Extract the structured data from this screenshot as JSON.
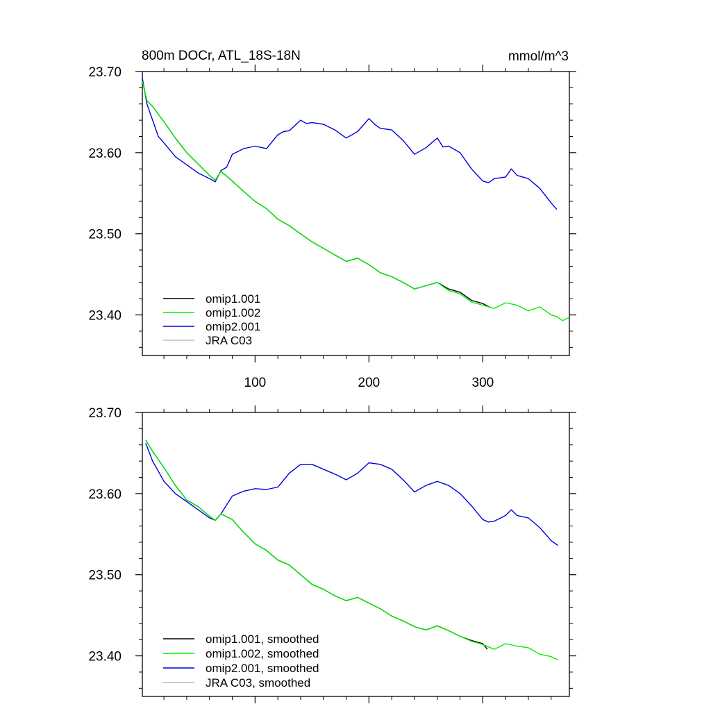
{
  "title": "800m DOCr, ATL_18S-18N",
  "units": "mmol/m^3",
  "colors": {
    "omip1_001": "#000000",
    "omip1_002": "#00ee00",
    "omip2_001": "#0000dd",
    "jra_c03": "#bbbbbb",
    "axis": "#000000",
    "background": "#ffffff"
  },
  "chart_data": [
    {
      "type": "line",
      "panel": "raw",
      "title": "800m DOCr, ATL_18S-18N",
      "units_label": "mmol/m^3",
      "xlim": [
        1,
        376
      ],
      "ylim": [
        23.35,
        23.7
      ],
      "x_ticks": [
        100,
        200,
        300
      ],
      "x_tick_labels": [
        "100",
        "200",
        "300"
      ],
      "y_ticks": [
        23.4,
        23.5,
        23.6,
        23.7
      ],
      "y_tick_labels": [
        "23.40",
        "23.50",
        "23.60",
        "23.70"
      ],
      "legend_position": "bottom-left",
      "series": [
        {
          "name": "omip1.001",
          "color": "#000000",
          "x": [
            1,
            5,
            10,
            20,
            30,
            40,
            50,
            60,
            65,
            70,
            80,
            90,
            100,
            110,
            120,
            130,
            140,
            150,
            160,
            170,
            180,
            190,
            200,
            210,
            220,
            230,
            240,
            250,
            260,
            270,
            280,
            290,
            300,
            307
          ],
          "y": [
            23.688,
            23.664,
            23.657,
            23.638,
            23.618,
            23.6,
            23.586,
            23.572,
            23.566,
            23.577,
            23.565,
            23.552,
            23.54,
            23.531,
            23.518,
            23.51,
            23.5,
            23.49,
            23.482,
            23.474,
            23.466,
            23.47,
            23.462,
            23.452,
            23.447,
            23.44,
            23.432,
            23.436,
            23.44,
            23.432,
            23.428,
            23.418,
            23.414,
            23.409
          ]
        },
        {
          "name": "omip1.002",
          "color": "#00ee00",
          "x": [
            1,
            5,
            10,
            20,
            30,
            40,
            50,
            60,
            65,
            70,
            80,
            90,
            100,
            110,
            120,
            130,
            140,
            150,
            160,
            170,
            180,
            190,
            200,
            210,
            220,
            230,
            240,
            250,
            260,
            270,
            280,
            290,
            300,
            310,
            320,
            330,
            340,
            350,
            360,
            365,
            370,
            376
          ],
          "y": [
            23.688,
            23.664,
            23.657,
            23.638,
            23.618,
            23.6,
            23.586,
            23.572,
            23.566,
            23.577,
            23.565,
            23.552,
            23.54,
            23.531,
            23.518,
            23.51,
            23.5,
            23.49,
            23.482,
            23.474,
            23.466,
            23.47,
            23.462,
            23.452,
            23.447,
            23.44,
            23.432,
            23.436,
            23.44,
            23.43,
            23.426,
            23.416,
            23.412,
            23.408,
            23.415,
            23.412,
            23.405,
            23.41,
            23.4,
            23.398,
            23.393,
            23.397
          ]
        },
        {
          "name": "omip2.001",
          "color": "#0000dd",
          "x": [
            1,
            3,
            5,
            10,
            15,
            20,
            30,
            40,
            50,
            60,
            65,
            70,
            75,
            80,
            90,
            100,
            110,
            120,
            125,
            130,
            140,
            145,
            150,
            160,
            170,
            180,
            190,
            200,
            205,
            210,
            220,
            230,
            240,
            250,
            255,
            260,
            265,
            270,
            280,
            290,
            300,
            305,
            310,
            320,
            325,
            330,
            340,
            350,
            360,
            365
          ],
          "y": [
            23.692,
            23.676,
            23.66,
            23.64,
            23.62,
            23.612,
            23.595,
            23.585,
            23.575,
            23.568,
            23.564,
            23.578,
            23.582,
            23.598,
            23.605,
            23.608,
            23.605,
            23.622,
            23.626,
            23.627,
            23.64,
            23.636,
            23.637,
            23.635,
            23.628,
            23.618,
            23.626,
            23.642,
            23.635,
            23.63,
            23.628,
            23.615,
            23.598,
            23.606,
            23.612,
            23.618,
            23.607,
            23.608,
            23.6,
            23.58,
            23.565,
            23.563,
            23.568,
            23.57,
            23.58,
            23.572,
            23.568,
            23.556,
            23.538,
            23.53
          ]
        },
        {
          "name": "JRA C03",
          "color": "#bbbbbb",
          "x": [],
          "y": []
        }
      ]
    },
    {
      "type": "line",
      "panel": "smoothed",
      "xlim": [
        1,
        376
      ],
      "ylim": [
        23.35,
        23.7
      ],
      "x_ticks": [
        100,
        200,
        300
      ],
      "y_ticks": [
        23.4,
        23.5,
        23.6,
        23.7
      ],
      "y_tick_labels": [
        "23.40",
        "23.50",
        "23.60",
        "23.70"
      ],
      "legend_position": "bottom-left",
      "series": [
        {
          "name": "omip1.001, smoothed",
          "color": "#000000",
          "x": [
            4,
            10,
            20,
            30,
            40,
            50,
            60,
            65,
            70,
            80,
            90,
            100,
            110,
            120,
            130,
            140,
            150,
            160,
            170,
            180,
            190,
            200,
            210,
            220,
            230,
            240,
            250,
            260,
            270,
            280,
            290,
            300,
            304
          ],
          "y": [
            23.666,
            23.652,
            23.632,
            23.61,
            23.592,
            23.584,
            23.572,
            23.567,
            23.575,
            23.568,
            23.552,
            23.538,
            23.53,
            23.518,
            23.512,
            23.5,
            23.488,
            23.482,
            23.474,
            23.468,
            23.472,
            23.465,
            23.458,
            23.449,
            23.443,
            23.436,
            23.432,
            23.437,
            23.431,
            23.424,
            23.419,
            23.415,
            23.408
          ]
        },
        {
          "name": "omip1.002, smoothed",
          "color": "#00ee00",
          "x": [
            4,
            10,
            20,
            30,
            40,
            50,
            60,
            65,
            70,
            80,
            90,
            100,
            110,
            120,
            130,
            140,
            150,
            160,
            170,
            180,
            190,
            200,
            210,
            220,
            230,
            240,
            250,
            260,
            270,
            280,
            290,
            300,
            310,
            320,
            330,
            340,
            350,
            360,
            366
          ],
          "y": [
            23.666,
            23.652,
            23.632,
            23.61,
            23.592,
            23.584,
            23.572,
            23.567,
            23.575,
            23.568,
            23.552,
            23.538,
            23.53,
            23.518,
            23.512,
            23.5,
            23.488,
            23.482,
            23.474,
            23.468,
            23.472,
            23.465,
            23.458,
            23.449,
            23.443,
            23.436,
            23.432,
            23.437,
            23.431,
            23.424,
            23.418,
            23.414,
            23.408,
            23.415,
            23.412,
            23.41,
            23.402,
            23.399,
            23.395
          ]
        },
        {
          "name": "omip2.001, smoothed",
          "color": "#0000dd",
          "x": [
            4,
            10,
            20,
            30,
            40,
            50,
            60,
            65,
            70,
            80,
            90,
            100,
            110,
            120,
            130,
            140,
            150,
            160,
            170,
            180,
            190,
            200,
            210,
            220,
            230,
            240,
            250,
            260,
            270,
            280,
            290,
            300,
            305,
            310,
            320,
            325,
            330,
            340,
            350,
            360,
            366
          ],
          "y": [
            23.662,
            23.64,
            23.615,
            23.6,
            23.59,
            23.58,
            23.57,
            23.567,
            23.575,
            23.597,
            23.603,
            23.606,
            23.605,
            23.608,
            23.625,
            23.636,
            23.636,
            23.63,
            23.624,
            23.617,
            23.625,
            23.638,
            23.636,
            23.63,
            23.617,
            23.602,
            23.61,
            23.615,
            23.61,
            23.6,
            23.585,
            23.568,
            23.565,
            23.566,
            23.573,
            23.58,
            23.573,
            23.57,
            23.558,
            23.542,
            23.536
          ]
        },
        {
          "name": "JRA C03, smoothed",
          "color": "#bbbbbb",
          "x": [],
          "y": []
        }
      ]
    }
  ]
}
